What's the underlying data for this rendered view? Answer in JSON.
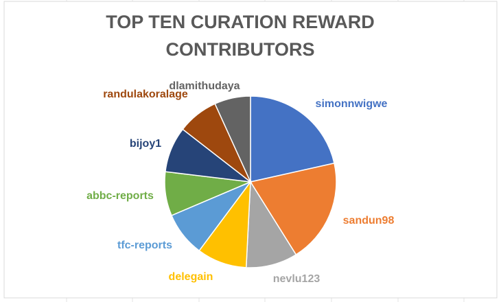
{
  "chart_data": {
    "type": "pie",
    "title": "TOP TEN CURATION REWARD CONTRIBUTORS",
    "categories": [
      "simonnwigwe",
      "sandun98",
      "nevlu123",
      "delegain",
      "tfc-reports",
      "abbc-reports",
      "bijoy1",
      "randulakoralage",
      "dlamithudaya"
    ],
    "values": [
      21.5,
      19.6,
      9.7,
      9.4,
      8.4,
      8.3,
      8.6,
      7.7,
      6.8
    ],
    "colors": [
      "#4472c4",
      "#ed7d31",
      "#a5a5a5",
      "#ffc000",
      "#5b9bd5",
      "#70ad47",
      "#264478",
      "#9e480e",
      "#636363"
    ]
  }
}
